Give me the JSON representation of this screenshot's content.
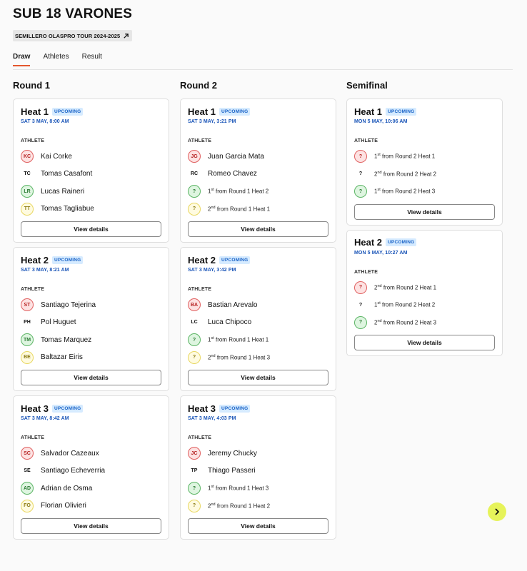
{
  "page": {
    "title": "SUB 18 VARONES",
    "tour_chip": "SEMILLERO OLASPRO TOUR 2024-2025",
    "tabs": [
      "Draw",
      "Athletes",
      "Result"
    ],
    "active_tab": "Draw"
  },
  "labels": {
    "athlete_header": "ATHLETE",
    "view_details": "View details",
    "status": "UPCOMING"
  },
  "colors": {
    "accent_tab_underline": "#e4572e",
    "badge_bg": "#d6ebff",
    "badge_text": "#1a63c7",
    "time_text": "#1a55b8",
    "next_button": "#e6f35a"
  },
  "rounds": [
    {
      "title": "Round 1",
      "heats": [
        {
          "name": "Heat 1",
          "status": "UPCOMING",
          "time": "SAT 3 MAY, 8:00 AM",
          "athletes": [
            {
              "initials": "KC",
              "name": "Kai Corke",
              "color": "red"
            },
            {
              "initials": "TC",
              "name": "Tomas Casafont",
              "color": "white"
            },
            {
              "initials": "LR",
              "name": "Lucas Raineri",
              "color": "green"
            },
            {
              "initials": "TT",
              "name": "Tomas Tagliabue",
              "color": "yellow"
            }
          ]
        },
        {
          "name": "Heat 2",
          "status": "UPCOMING",
          "time": "SAT 3 MAY, 8:21 AM",
          "athletes": [
            {
              "initials": "ST",
              "name": "Santiago Tejerina",
              "color": "red"
            },
            {
              "initials": "PH",
              "name": "Pol Huguet",
              "color": "white"
            },
            {
              "initials": "TM",
              "name": "Tomas Marquez",
              "color": "green"
            },
            {
              "initials": "BE",
              "name": "Baltazar Eiris",
              "color": "yellow"
            }
          ]
        },
        {
          "name": "Heat 3",
          "status": "UPCOMING",
          "time": "SAT 3 MAY, 8:42 AM",
          "athletes": [
            {
              "initials": "SC",
              "name": "Salvador Cazeaux",
              "color": "red"
            },
            {
              "initials": "SE",
              "name": "Santiago Echeverria",
              "color": "white"
            },
            {
              "initials": "AD",
              "name": "Adrian de Osma",
              "color": "green"
            },
            {
              "initials": "FO",
              "name": "Florian Olivieri",
              "color": "yellow"
            }
          ]
        }
      ]
    },
    {
      "title": "Round 2",
      "heats": [
        {
          "name": "Heat 1",
          "status": "UPCOMING",
          "time": "SAT 3 MAY, 3:21 PM",
          "athletes": [
            {
              "initials": "JG",
              "name": "Juan Garcia Mata",
              "color": "red"
            },
            {
              "initials": "RC",
              "name": "Romeo Chavez",
              "color": "white"
            },
            {
              "initials": "?",
              "rank": "1",
              "suffix": "st",
              "source": "from Round 1 Heat 2",
              "color": "green",
              "placeholder": true
            },
            {
              "initials": "?",
              "rank": "2",
              "suffix": "nd",
              "source": "from Round 1 Heat 1",
              "color": "yellow",
              "placeholder": true
            }
          ]
        },
        {
          "name": "Heat 2",
          "status": "UPCOMING",
          "time": "SAT 3 MAY, 3:42 PM",
          "athletes": [
            {
              "initials": "BA",
              "name": "Bastian Arevalo",
              "color": "red"
            },
            {
              "initials": "LC",
              "name": "Luca Chipoco",
              "color": "white"
            },
            {
              "initials": "?",
              "rank": "1",
              "suffix": "st",
              "source": "from Round 1 Heat 1",
              "color": "green",
              "placeholder": true
            },
            {
              "initials": "?",
              "rank": "2",
              "suffix": "nd",
              "source": "from Round 1 Heat 3",
              "color": "yellow",
              "placeholder": true
            }
          ]
        },
        {
          "name": "Heat 3",
          "status": "UPCOMING",
          "time": "SAT 3 MAY, 4:03 PM",
          "athletes": [
            {
              "initials": "JC",
              "name": "Jeremy Chucky",
              "color": "red"
            },
            {
              "initials": "TP",
              "name": "Thiago Passeri",
              "color": "white"
            },
            {
              "initials": "?",
              "rank": "1",
              "suffix": "st",
              "source": "from Round 1 Heat 3",
              "color": "green",
              "placeholder": true
            },
            {
              "initials": "?",
              "rank": "2",
              "suffix": "nd",
              "source": "from Round 1 Heat 2",
              "color": "yellow",
              "placeholder": true
            }
          ]
        }
      ]
    },
    {
      "title": "Semifinal",
      "heats": [
        {
          "name": "Heat 1",
          "status": "UPCOMING",
          "time": "MON 5 MAY, 10:06 AM",
          "athletes": [
            {
              "initials": "?",
              "rank": "1",
              "suffix": "st",
              "source": "from Round 2 Heat 1",
              "color": "red",
              "placeholder": true
            },
            {
              "initials": "?",
              "rank": "2",
              "suffix": "nd",
              "source": "from Round 2 Heat 2",
              "color": "white",
              "placeholder": true
            },
            {
              "initials": "?",
              "rank": "1",
              "suffix": "st",
              "source": "from Round 2 Heat 3",
              "color": "green",
              "placeholder": true
            }
          ]
        },
        {
          "name": "Heat 2",
          "status": "UPCOMING",
          "time": "MON 5 MAY, 10:27 AM",
          "athletes": [
            {
              "initials": "?",
              "rank": "2",
              "suffix": "nd",
              "source": "from Round 2 Heat 1",
              "color": "red",
              "placeholder": true
            },
            {
              "initials": "?",
              "rank": "1",
              "suffix": "st",
              "source": "from Round 2 Heat 2",
              "color": "white",
              "placeholder": true
            },
            {
              "initials": "?",
              "rank": "2",
              "suffix": "nd",
              "source": "from Round 2 Heat 3",
              "color": "green",
              "placeholder": true
            }
          ]
        }
      ]
    }
  ],
  "next_button_icon": "chevron-right-icon"
}
